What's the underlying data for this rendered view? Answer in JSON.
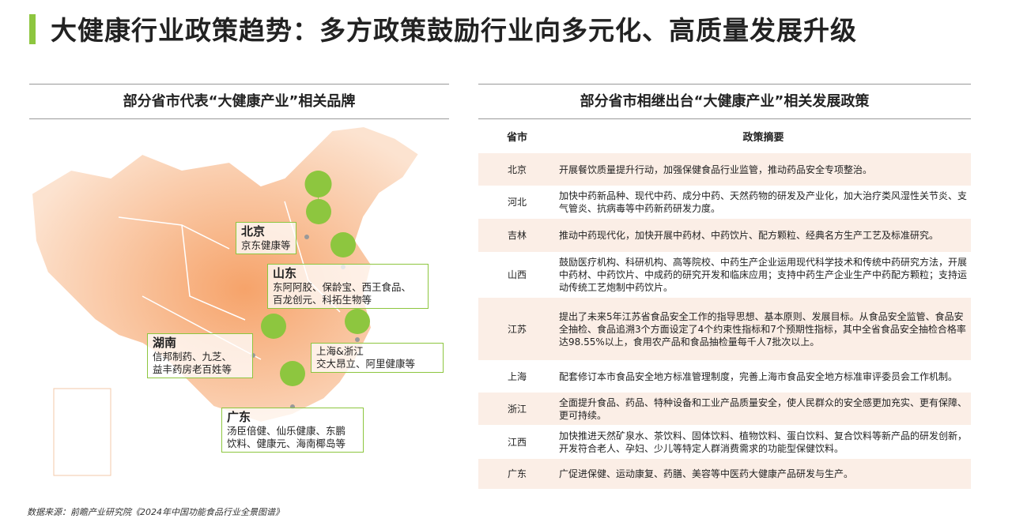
{
  "header": {
    "title": "大健康行业政策趋势：多方政策鼓励行业向多元化、高质量发展升级"
  },
  "left": {
    "title": "部分省市代表“大健康产业”相关品牌",
    "callouts": [
      {
        "region": "北京",
        "lines": [
          "京东健康等"
        ]
      },
      {
        "region": "山东",
        "lines": [
          "东阿阿胶、保龄宝、西王食品、",
          "百龙创元、科拓生物等"
        ]
      },
      {
        "region": "湖南",
        "lines": [
          "信邦制药、九芝、",
          "益丰药房老百姓等"
        ]
      },
      {
        "region": "上海&浙江",
        "lines": [
          "交大昂立、阿里健康等"
        ]
      },
      {
        "region": "广东",
        "lines": [
          "汤臣倍健、仙乐健康、东鹏",
          "饮料、健康元、海南椰岛等"
        ]
      }
    ]
  },
  "right": {
    "title": "部分省市相继出台“大健康产业”相关发展政策"
  },
  "table": {
    "headers": [
      "省市",
      "政策摘要"
    ],
    "rows": [
      [
        "北京",
        "开展餐饮质量提升行动，加强保健食品行业监管，推动药品安全专项整治。"
      ],
      [
        "河北",
        "加快中药新品种、现代中药、成分中药、天然药物的研发及产业化，加大治疗类风湿性关节炎、支气管炎、抗病毒等中药新药研发力度。"
      ],
      [
        "吉林",
        "推动中药现代化，加快开展中药材、中药饮片、配方颗粒、经典名方生产工艺及标准研究。"
      ],
      [
        "山西",
        "鼓励医疗机构、科研机构、高等院校、中药生产企业运用现代科学技术和传统中药研究方法，开展中药材、中药饮片、中成药的研究开发和临床应用；支持中药生产企业生产中药配方颗粒；支持运动传统工艺炮制中药饮片。"
      ],
      [
        "江苏",
        "提出了未来5年江苏省食品安全工作的指导思想、基本原则、发展目标。从食品安全监管、食品安全抽检、食品追溯3个方面设定了4个约束性指标和7个预期性指标，其中全省食品安全抽检合格率达98.55%以上，食用农产品和食品抽检量每千人7批次以上。"
      ],
      [
        "上海",
        "配套修订本市食品安全地方标准管理制度，完善上海市食品安全地方标准审评委员会工作机制。"
      ],
      [
        "浙江",
        "全面提升食品、药品、特种设备和工业产品质量安全，使人民群众的安全感更加充实、更有保障、更可持续。"
      ],
      [
        "江西",
        "加快推进天然矿泉水、茶饮料、固体饮料、植物饮料、蛋白饮料、复合饮料等新产品的研发创新，开发符合老人、孕妇、少儿等特定人群消费需求的功能型保健饮料。"
      ],
      [
        "广东",
        "广促进保健、运动康复、药膳、美容等中医药大健康产品研发与生产。"
      ]
    ]
  },
  "footer": {
    "source": "数据来源：前瞻产业研究院《2024年中国功能食品行业全景图谱》"
  }
}
